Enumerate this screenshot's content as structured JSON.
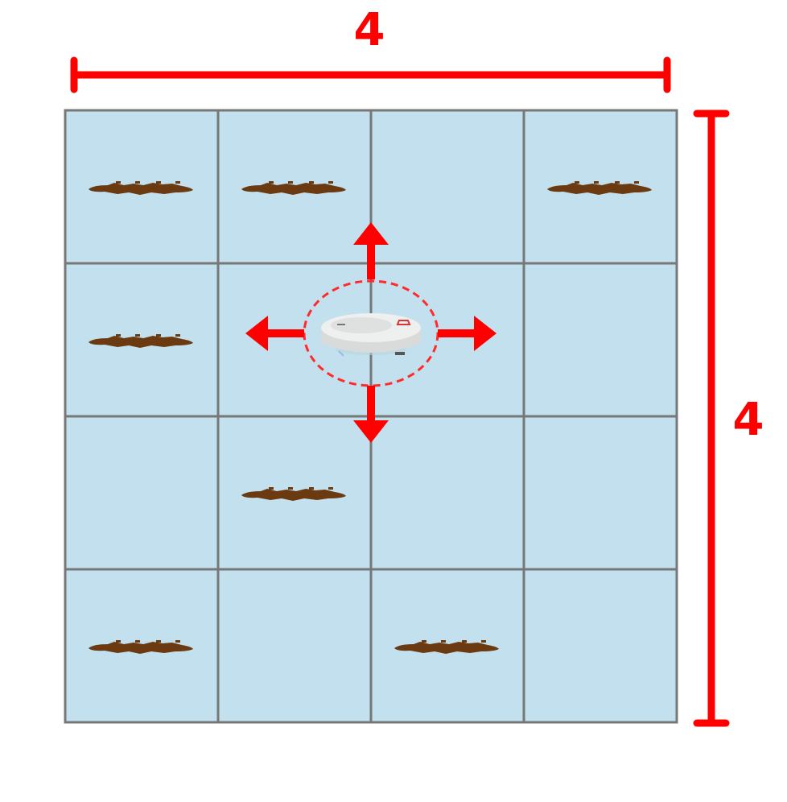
{
  "dimensions": {
    "width_label": "4",
    "height_label": "4"
  },
  "grid": {
    "rows": 4,
    "cols": 4,
    "tile_color": "#c2e0ed",
    "line_color": "#777777",
    "dirt_cells": [
      [
        0,
        0
      ],
      [
        0,
        1
      ],
      [
        0,
        3
      ],
      [
        1,
        0
      ],
      [
        2,
        1
      ],
      [
        3,
        0
      ],
      [
        3,
        2
      ]
    ],
    "robot_cell": [
      1,
      2
    ]
  },
  "robot": {
    "moves": [
      "up",
      "down",
      "left",
      "right"
    ]
  },
  "colors": {
    "accent": "#ff0000",
    "dirt": "#6b3a10",
    "robot_body": "#e9eaea"
  }
}
